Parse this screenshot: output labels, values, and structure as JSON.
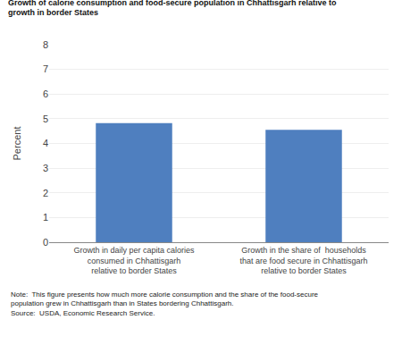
{
  "chart_data": {
    "type": "bar",
    "title": "Growth of calorie consumption and food-secure population in Chhattisgarh relative to\ngrowth in border States",
    "ylabel": "Percent",
    "categories": [
      "Growth in daily per capita calories\nconsumed in Chhattisgarh\nrelative to border States",
      "Growth in the share of  households\nthat are food secure in Chhattisgarh\nrelative to border States"
    ],
    "values": [
      4.82,
      4.55
    ],
    "color": "#4f7fbf",
    "ylim": [
      0,
      8
    ],
    "yticks": [
      0,
      1,
      2,
      3,
      4,
      5,
      6,
      7,
      8
    ],
    "grid": true,
    "annotations": [
      "Note:  This figure presents how much more calorie consumption and the share of the food-secure\npopulation grew in Chhattisgarh than in States bordering Chhattisgarh.\nSource:  USDA, Economic Research Service."
    ]
  }
}
